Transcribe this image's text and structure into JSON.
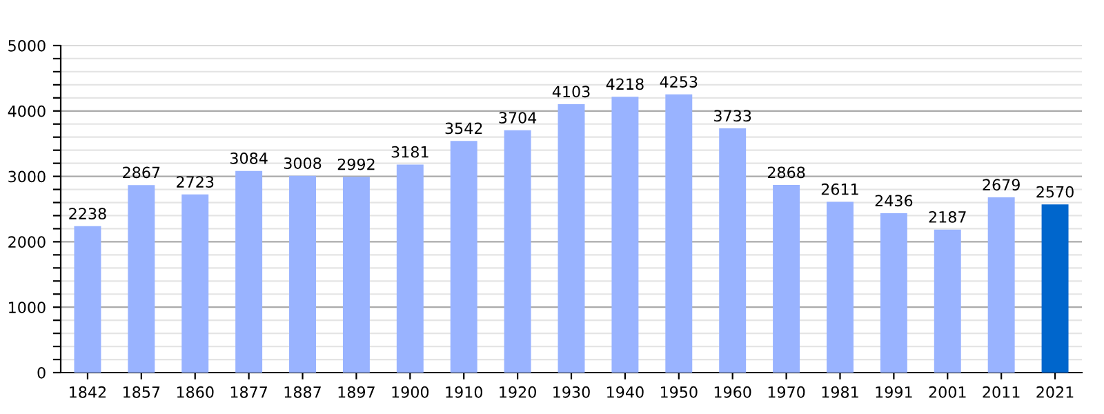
{
  "chart_data": {
    "type": "bar",
    "categories": [
      "1842",
      "1857",
      "1860",
      "1877",
      "1887",
      "1897",
      "1900",
      "1910",
      "1920",
      "1930",
      "1940",
      "1950",
      "1960",
      "1970",
      "1981",
      "1991",
      "2001",
      "2011",
      "2021"
    ],
    "values": [
      2238,
      2867,
      2723,
      3084,
      3008,
      2992,
      3181,
      3542,
      3704,
      4103,
      4218,
      4253,
      3733,
      2868,
      2611,
      2436,
      2187,
      2679,
      2570
    ],
    "colors": [
      "#99b3ff",
      "#99b3ff",
      "#99b3ff",
      "#99b3ff",
      "#99b3ff",
      "#99b3ff",
      "#99b3ff",
      "#99b3ff",
      "#99b3ff",
      "#99b3ff",
      "#99b3ff",
      "#99b3ff",
      "#99b3ff",
      "#99b3ff",
      "#99b3ff",
      "#99b3ff",
      "#99b3ff",
      "#99b3ff",
      "#0066cc"
    ],
    "ylim": [
      0,
      5000
    ],
    "yticks": [
      0,
      {
        "value": 200,
        "label": null
      },
      {
        "value": 400,
        "label": null
      },
      {
        "value": 600,
        "label": null
      },
      {
        "value": 800,
        "label": null
      },
      1000,
      {
        "value": 1200,
        "label": null
      },
      {
        "value": 1400,
        "label": null
      },
      {
        "value": 1600,
        "label": null
      },
      {
        "value": 1800,
        "label": null
      },
      2000,
      {
        "value": 2200,
        "label": null
      },
      {
        "value": 2400,
        "label": null
      },
      {
        "value": 2600,
        "label": null
      },
      {
        "value": 2800,
        "label": null
      },
      3000,
      {
        "value": 3200,
        "label": null
      },
      {
        "value": 3400,
        "label": null
      },
      {
        "value": 3600,
        "label": null
      },
      {
        "value": 3800,
        "label": null
      },
      4000,
      {
        "value": 4200,
        "label": null
      },
      {
        "value": 4400,
        "label": null
      },
      {
        "value": 4600,
        "label": null
      },
      {
        "value": 4800,
        "label": null
      },
      5000
    ],
    "grid": "y",
    "data_labels": true
  }
}
